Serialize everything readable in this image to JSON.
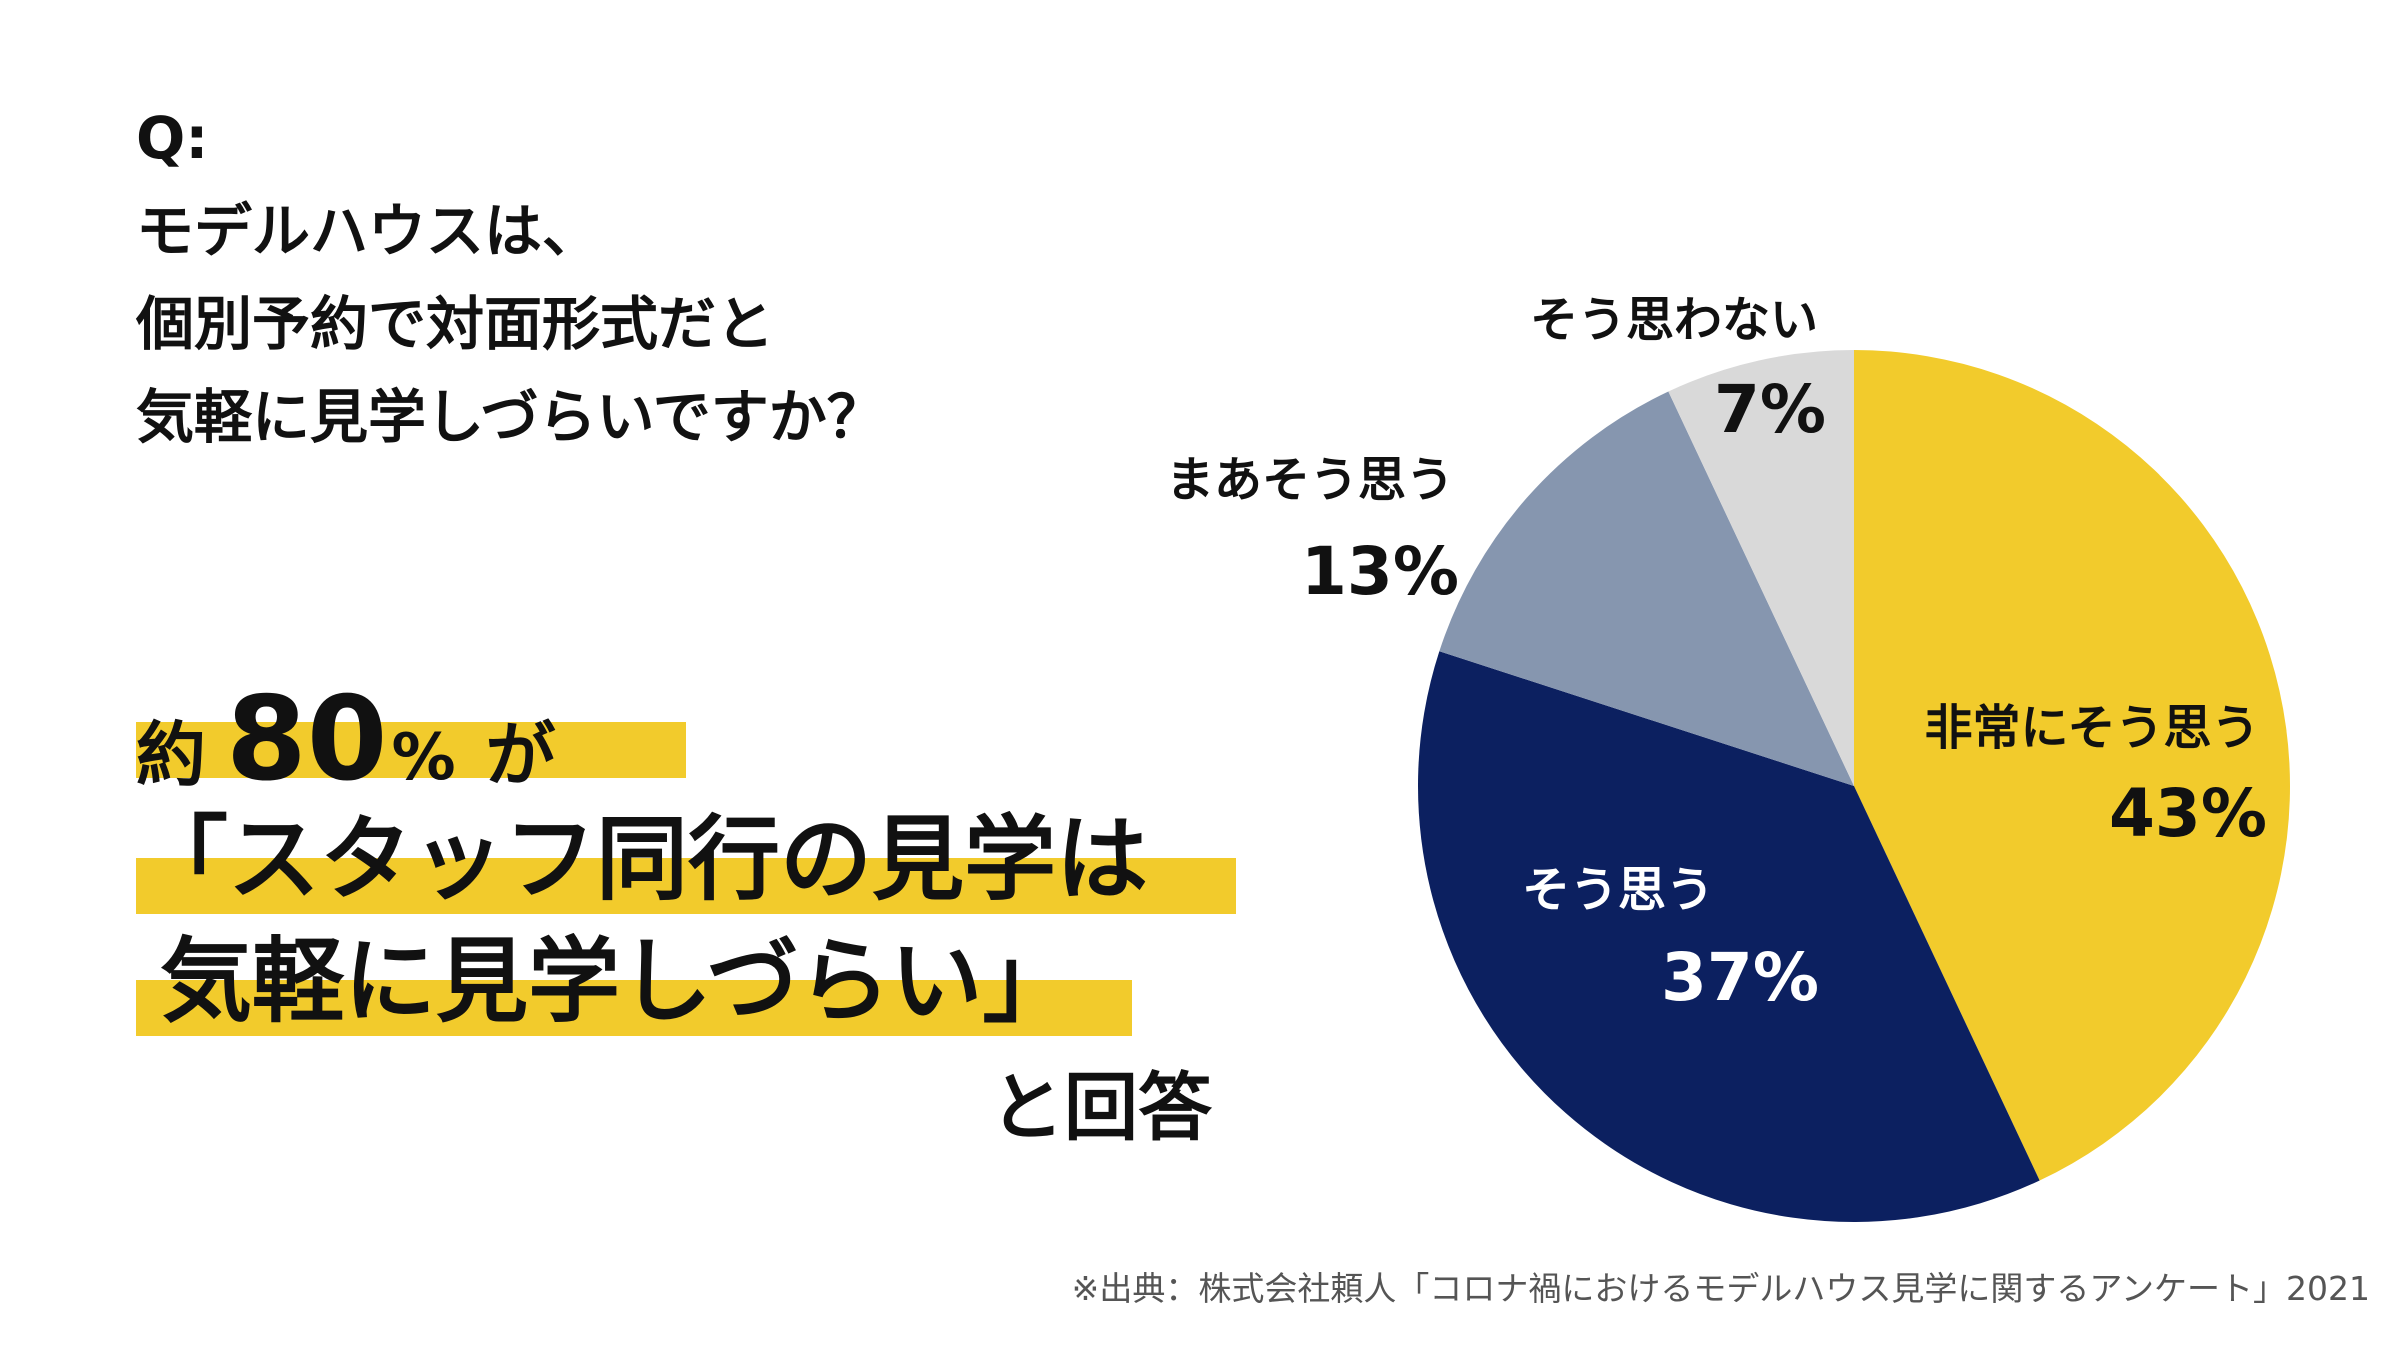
{
  "question": {
    "prefix": "Q:",
    "lines": [
      "モデルハウスは、",
      "個別予約で対面形式だと",
      "気軽に見学しづらいですか？"
    ]
  },
  "answer": {
    "line1_pre": "約",
    "line1_number": "80",
    "line1_pct": "%",
    "line1_post": "が",
    "line2": "「スタッフ同行の見学は",
    "line3": "気軽に見学しづらい」",
    "line4": "と回答"
  },
  "source": "※出典：株式会社頼人「コロナ禍におけるモデルハウス見学に関するアンケート」2021",
  "colors": {
    "highlight": "#f2cb2c",
    "very_agree": "#f2cb2c",
    "agree": "#0c2060",
    "somewhat_agree": "#8696af",
    "disagree": "#d9d9d9"
  },
  "chart_data": {
    "type": "pie",
    "title": "",
    "start_angle_deg": 0,
    "direction": "clockwise",
    "slices": [
      {
        "label": "非常にそう思う",
        "value": 43,
        "display": "43%",
        "color": "#f2cb2c"
      },
      {
        "label": "そう思う",
        "value": 37,
        "display": "37%",
        "color": "#0c2060"
      },
      {
        "label": "まあそう思う",
        "value": 13,
        "display": "13%",
        "color": "#8696af"
      },
      {
        "label": "そう思わない",
        "value": 7,
        "display": "7%",
        "color": "#d9d9d9"
      }
    ]
  }
}
